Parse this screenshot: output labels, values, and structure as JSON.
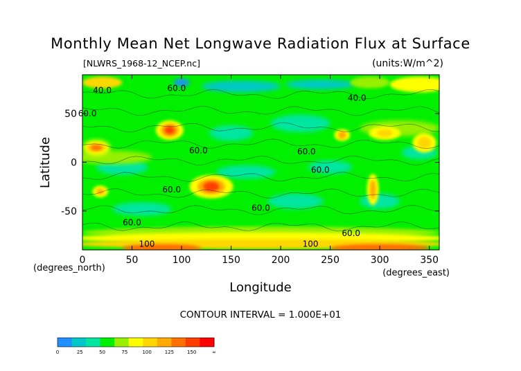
{
  "chart_data": {
    "type": "heatmap",
    "title": "Monthly Mean Net Longwave Radiation Flux at Surface",
    "file_label": "[NLWRS_1968-12_NCEP.nc]",
    "units_label": "(units:W/m^2)",
    "xlabel": "Longitude",
    "ylabel": "Latitude",
    "x_unit_label": "(degrees_east)",
    "y_unit_label": "(degrees_north)",
    "contour_interval_label": "CONTOUR INTERVAL = 1.000E+01",
    "xlim": [
      0,
      360
    ],
    "ylim": [
      -90,
      90
    ],
    "x_ticks": [
      0,
      50,
      100,
      150,
      200,
      250,
      300,
      350
    ],
    "y_ticks": [
      50,
      0,
      -50
    ],
    "contour_labels": [
      {
        "text": "40.0",
        "lon": 20,
        "lat": 74
      },
      {
        "text": "60.0",
        "lon": 95,
        "lat": 76
      },
      {
        "text": "60.0",
        "lon": 5,
        "lat": 50
      },
      {
        "text": "40.0",
        "lon": 277,
        "lat": 66
      },
      {
        "text": "60.0",
        "lon": 117,
        "lat": 12
      },
      {
        "text": "60.0",
        "lon": 226,
        "lat": 11
      },
      {
        "text": "60.0",
        "lon": 240,
        "lat": -8
      },
      {
        "text": "60.0",
        "lon": 90,
        "lat": -28
      },
      {
        "text": "60.0",
        "lon": 180,
        "lat": -47
      },
      {
        "text": "60.0",
        "lon": 50,
        "lat": -62
      },
      {
        "text": "60.0",
        "lon": 271,
        "lat": -73
      },
      {
        "text": "100",
        "lon": 65,
        "lat": -84
      },
      {
        "text": "100",
        "lon": 230,
        "lat": -84
      }
    ],
    "colorbar": {
      "tick_labels": [
        "0",
        "25",
        "50",
        "75",
        "100",
        "125",
        "150",
        "∞"
      ],
      "colors": [
        "#1e90ff",
        "#00c8c8",
        "#00e6a0",
        "#00f000",
        "#96f000",
        "#ffff00",
        "#ffd700",
        "#ffaa00",
        "#ff7000",
        "#ff3c00",
        "#ff0000"
      ]
    }
  }
}
